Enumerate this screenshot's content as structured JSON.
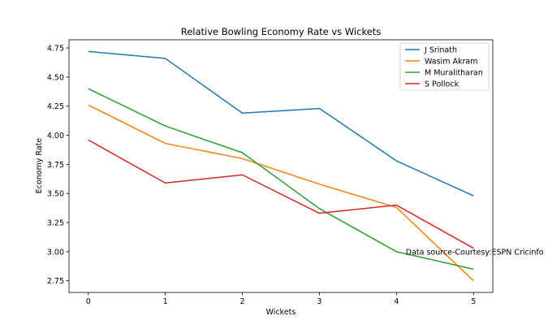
{
  "chart_data": {
    "type": "line",
    "title": "Relative Bowling Economy Rate vs Wickets",
    "xlabel": "Wickets",
    "ylabel": "Economy Rate",
    "x": [
      0,
      1,
      2,
      3,
      4,
      5
    ],
    "xlim": [
      -0.25,
      5.25
    ],
    "ylim": [
      2.65,
      4.82
    ],
    "xticks": [
      "0",
      "1",
      "2",
      "3",
      "4",
      "5"
    ],
    "yticks": [
      "2.75",
      "3.00",
      "3.25",
      "3.50",
      "3.75",
      "4.00",
      "4.25",
      "4.50",
      "4.75"
    ],
    "grid": false,
    "legend_position": "top-right",
    "series": [
      {
        "name": "J Srinath",
        "color": "#1f77b4",
        "values": [
          4.72,
          4.66,
          4.19,
          4.23,
          3.78,
          3.48
        ]
      },
      {
        "name": "Wasim Akram",
        "color": "#ff7f0e",
        "values": [
          4.26,
          3.93,
          3.8,
          3.58,
          3.38,
          2.75
        ]
      },
      {
        "name": "M Muralitharan",
        "color": "#2ca02c",
        "values": [
          4.4,
          4.08,
          3.85,
          3.37,
          3.0,
          2.85
        ]
      },
      {
        "name": "S Pollock",
        "color": "#d62728",
        "values": [
          3.96,
          3.59,
          3.66,
          3.33,
          3.4,
          3.03
        ]
      }
    ],
    "annotation": {
      "text": "Data source-Courtesy:ESPN Cricinfo",
      "x": 4.12,
      "y": 3.0
    }
  }
}
